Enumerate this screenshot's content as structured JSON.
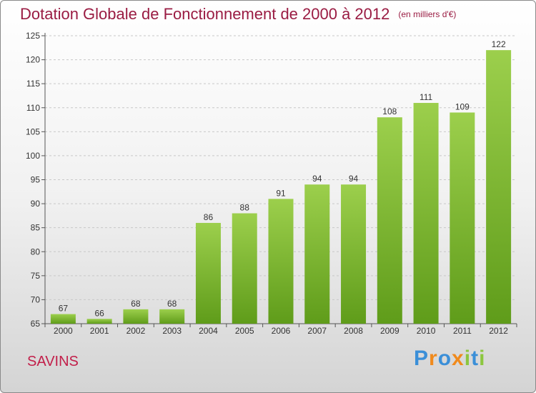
{
  "chart_data": {
    "type": "bar",
    "title": "Dotation Globale de Fonctionnement de 2000 à 2012",
    "unit": "(en milliers d'€)",
    "categories": [
      "2000",
      "2001",
      "2002",
      "2003",
      "2004",
      "2005",
      "2006",
      "2007",
      "2008",
      "2009",
      "2010",
      "2011",
      "2012"
    ],
    "values": [
      67,
      66,
      68,
      68,
      86,
      88,
      91,
      94,
      94,
      108,
      111,
      109,
      122
    ],
    "ylim": [
      65,
      125
    ],
    "yticks": [
      65,
      70,
      75,
      80,
      85,
      90,
      95,
      100,
      105,
      110,
      115,
      120,
      125
    ],
    "grid": true,
    "bar_color_top": "#9ccf4c",
    "bar_color_bottom": "#5f9c1a"
  },
  "commune": "SAVINS",
  "logo": {
    "letters": [
      "P",
      "r",
      "o",
      "x",
      "i",
      "t",
      "i"
    ],
    "colors": [
      "#3b8fd8",
      "#f08a1c",
      "#3b8fd8",
      "#f08a1c",
      "#8cc63f",
      "#3b8fd8",
      "#8cc63f"
    ]
  }
}
